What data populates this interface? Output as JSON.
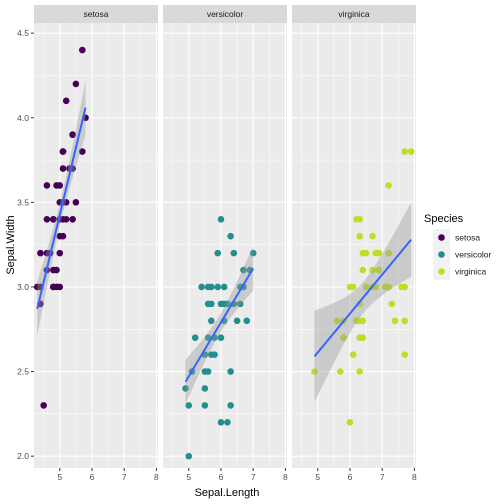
{
  "chart_data": {
    "type": "scatter",
    "xlabel": "Sepal.Length",
    "ylabel": "Sepal.Width",
    "xlim": [
      4.2,
      8.05
    ],
    "ylim": [
      1.93,
      4.56
    ],
    "x_ticks": [
      5,
      6,
      7,
      8
    ],
    "y_ticks": [
      2.0,
      2.5,
      3.0,
      3.5,
      4.0,
      4.5
    ],
    "y_tick_labels": [
      "2.0",
      "2.5",
      "3.0",
      "3.5",
      "4.0",
      "4.5"
    ],
    "background_color": "#EBEBEB",
    "strip_color": "#D9D9D9",
    "grid": true,
    "legend_position": "right",
    "legend": {
      "title": "Species",
      "entries": [
        {
          "label": "setosa",
          "color": "#440154"
        },
        {
          "label": "versicolor",
          "color": "#21908C"
        },
        {
          "label": "virginica",
          "color": "#BBDF27"
        }
      ]
    },
    "fit_line_color": "#3366FF",
    "ribbon_color": "#999999",
    "panels": [
      {
        "name": "setosa",
        "color": "#440154",
        "points": [
          [
            4.4,
            3.0
          ],
          [
            4.5,
            2.3
          ],
          [
            4.3,
            3.0
          ],
          [
            4.4,
            2.9
          ],
          [
            4.4,
            3.2
          ],
          [
            4.6,
            3.1
          ],
          [
            4.6,
            3.4
          ],
          [
            4.6,
            3.6
          ],
          [
            4.6,
            3.2
          ],
          [
            4.7,
            3.2
          ],
          [
            4.8,
            3.4
          ],
          [
            4.8,
            3.0
          ],
          [
            4.8,
            3.4
          ],
          [
            4.8,
            3.1
          ],
          [
            4.8,
            3.0
          ],
          [
            4.9,
            3.0
          ],
          [
            4.9,
            3.1
          ],
          [
            4.9,
            3.6
          ],
          [
            5.0,
            3.6
          ],
          [
            5.0,
            3.4
          ],
          [
            5.0,
            3.0
          ],
          [
            5.0,
            3.3
          ],
          [
            5.0,
            3.5
          ],
          [
            5.0,
            3.2
          ],
          [
            5.1,
            3.5
          ],
          [
            5.1,
            3.8
          ],
          [
            5.1,
            3.7
          ],
          [
            5.1,
            3.3
          ],
          [
            5.1,
            3.4
          ],
          [
            5.1,
            3.8
          ],
          [
            5.2,
            3.5
          ],
          [
            5.2,
            4.1
          ],
          [
            5.2,
            3.4
          ],
          [
            5.3,
            3.7
          ],
          [
            5.4,
            3.9
          ],
          [
            5.4,
            3.7
          ],
          [
            5.4,
            3.4
          ],
          [
            5.4,
            3.9
          ],
          [
            5.5,
            4.2
          ],
          [
            5.5,
            3.5
          ],
          [
            5.7,
            4.4
          ],
          [
            5.7,
            3.8
          ],
          [
            5.8,
            4.0
          ]
        ],
        "fit": {
          "x": [
            4.3,
            5.8
          ],
          "y": [
            2.87,
            4.06
          ]
        },
        "band_halfwidth_ends": [
          0.16,
          0.16
        ]
      },
      {
        "name": "versicolor",
        "color": "#21908C",
        "points": [
          [
            4.9,
            2.4
          ],
          [
            5.0,
            2.0
          ],
          [
            5.0,
            2.3
          ],
          [
            5.1,
            2.5
          ],
          [
            5.2,
            2.7
          ],
          [
            5.4,
            3.0
          ],
          [
            5.5,
            2.3
          ],
          [
            5.5,
            2.4
          ],
          [
            5.5,
            2.6
          ],
          [
            5.5,
            2.5
          ],
          [
            5.6,
            2.9
          ],
          [
            5.6,
            3.0
          ],
          [
            5.6,
            2.5
          ],
          [
            5.6,
            2.7
          ],
          [
            5.7,
            2.8
          ],
          [
            5.7,
            2.6
          ],
          [
            5.7,
            3.0
          ],
          [
            5.7,
            2.9
          ],
          [
            5.8,
            2.7
          ],
          [
            5.8,
            2.6
          ],
          [
            5.9,
            3.0
          ],
          [
            5.9,
            3.2
          ],
          [
            6.0,
            2.2
          ],
          [
            6.0,
            2.9
          ],
          [
            6.0,
            3.4
          ],
          [
            6.0,
            2.7
          ],
          [
            6.1,
            2.9
          ],
          [
            6.1,
            2.8
          ],
          [
            6.1,
            3.0
          ],
          [
            6.2,
            2.2
          ],
          [
            6.2,
            2.9
          ],
          [
            6.3,
            3.3
          ],
          [
            6.3,
            2.5
          ],
          [
            6.3,
            2.3
          ],
          [
            6.4,
            3.2
          ],
          [
            6.4,
            2.9
          ],
          [
            6.5,
            2.8
          ],
          [
            6.6,
            2.9
          ],
          [
            6.6,
            3.0
          ],
          [
            6.7,
            3.1
          ],
          [
            6.7,
            3.0
          ],
          [
            6.8,
            2.8
          ],
          [
            6.9,
            3.1
          ],
          [
            7.0,
            3.2
          ]
        ],
        "fit": {
          "x": [
            4.9,
            7.0
          ],
          "y": [
            2.44,
            3.11
          ]
        },
        "band_halfwidth_ends": [
          0.13,
          0.13
        ]
      },
      {
        "name": "virginica",
        "color": "#BBDF27",
        "points": [
          [
            4.9,
            2.5
          ],
          [
            5.6,
            2.8
          ],
          [
            5.7,
            2.5
          ],
          [
            5.8,
            2.7
          ],
          [
            5.8,
            2.8
          ],
          [
            5.8,
            2.7
          ],
          [
            6.0,
            2.2
          ],
          [
            6.0,
            3.0
          ],
          [
            6.1,
            3.0
          ],
          [
            6.1,
            2.6
          ],
          [
            6.2,
            3.4
          ],
          [
            6.2,
            2.8
          ],
          [
            6.3,
            3.3
          ],
          [
            6.3,
            2.9
          ],
          [
            6.3,
            2.7
          ],
          [
            6.3,
            2.8
          ],
          [
            6.3,
            2.5
          ],
          [
            6.3,
            3.4
          ],
          [
            6.4,
            3.2
          ],
          [
            6.4,
            2.7
          ],
          [
            6.4,
            3.1
          ],
          [
            6.4,
            2.8
          ],
          [
            6.5,
            3.0
          ],
          [
            6.5,
            3.2
          ],
          [
            6.5,
            3.0
          ],
          [
            6.7,
            3.3
          ],
          [
            6.7,
            3.0
          ],
          [
            6.7,
            3.1
          ],
          [
            6.8,
            3.0
          ],
          [
            6.8,
            3.2
          ],
          [
            6.9,
            3.2
          ],
          [
            6.9,
            3.1
          ],
          [
            7.1,
            3.0
          ],
          [
            7.2,
            3.6
          ],
          [
            7.2,
            3.2
          ],
          [
            7.2,
            3.0
          ],
          [
            7.3,
            2.9
          ],
          [
            7.4,
            2.8
          ],
          [
            7.6,
            3.0
          ],
          [
            7.7,
            3.8
          ],
          [
            7.7,
            2.6
          ],
          [
            7.7,
            2.8
          ],
          [
            7.7,
            3.0
          ],
          [
            7.9,
            3.8
          ]
        ],
        "fit": {
          "x": [
            4.9,
            7.9
          ],
          "y": [
            2.59,
            3.28
          ]
        },
        "band_halfwidth_ends": [
          0.27,
          0.22
        ]
      }
    ]
  }
}
